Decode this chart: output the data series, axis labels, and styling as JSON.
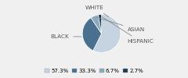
{
  "labels": [
    "WHITE",
    "BLACK",
    "ASIAN",
    "HISPANIC"
  ],
  "values": [
    57.3,
    33.3,
    6.7,
    2.7
  ],
  "colors": [
    "#c5d4e0",
    "#4a7090",
    "#8aaabf",
    "#1a3a52"
  ],
  "legend_labels": [
    "57.3%",
    "33.3%",
    "6.7%",
    "2.7%"
  ],
  "background_color": "#f0f0f0",
  "font_size": 5.2,
  "legend_font_size": 5.0
}
